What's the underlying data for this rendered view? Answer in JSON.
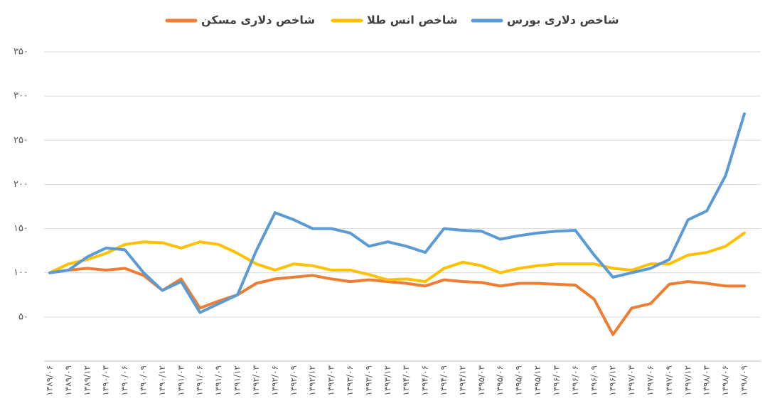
{
  "chart_data": {
    "type": "line",
    "categories": [
      "۱۳۸۹/۰۶",
      "۱۳۸۹/۰۹",
      "۱۳۸۹/۱۲",
      "۱۳۹۰/۰۳",
      "۱۳۹۰/۰۶",
      "۱۳۹۰/۰۹",
      "۱۳۹۰/۱۲",
      "۱۳۹۱/۰۳",
      "۱۳۹۱/۰۶",
      "۱۳۹۱/۰۹",
      "۱۳۹۱/۱۲",
      "۱۳۹۲/۰۳",
      "۱۳۹۲/۰۶",
      "۱۳۹۲/۰۹",
      "۱۳۹۲/۱۲",
      "۱۳۹۳/۰۳",
      "۱۳۹۳/۰۶",
      "۱۳۹۳/۰۹",
      "۱۳۹۳/۱۲",
      "۱۳۹۴/۰۳",
      "۱۳۹۴/۰۶",
      "۱۳۹۴/۰۹",
      "۱۳۹۴/۱۲",
      "۱۳۹۵/۰۳",
      "۱۳۹۵/۰۶",
      "۱۳۹۵/۰۹",
      "۱۳۹۵/۱۲",
      "۱۳۹۶/۰۳",
      "۱۳۹۶/۰۶",
      "۱۳۹۶/۰۹",
      "۱۳۹۶/۱۲",
      "۱۳۹۷/۰۳",
      "۱۳۹۷/۰۶",
      "۱۳۹۷/۰۹",
      "۱۳۹۷/۱۲",
      "۱۳۹۸/۰۳",
      "۱۳۹۸/۰۶",
      "۱۳۹۸/۰۹"
    ],
    "series": [
      {
        "name": "شاخص دلاری مسکن",
        "color": "#ed7d31",
        "values": [
          100,
          103,
          105,
          103,
          105,
          97,
          80,
          93,
          60,
          68,
          75,
          88,
          93,
          95,
          97,
          93,
          90,
          92,
          90,
          88,
          85,
          92,
          90,
          89,
          85,
          88,
          88,
          87,
          86,
          70,
          30,
          60,
          65,
          87,
          90,
          88,
          85,
          85
        ]
      },
      {
        "name": "شاخص انس طلا",
        "color": "#ffc000",
        "values": [
          100,
          110,
          115,
          122,
          132,
          135,
          134,
          128,
          135,
          132,
          122,
          110,
          103,
          110,
          108,
          103,
          103,
          98,
          92,
          93,
          90,
          105,
          112,
          108,
          100,
          105,
          108,
          110,
          110,
          110,
          105,
          103,
          110,
          110,
          120,
          123,
          130,
          145
        ]
      },
      {
        "name": "شاخص دلاری بورس",
        "color": "#5b9bd5",
        "values": [
          100,
          103,
          118,
          128,
          126,
          100,
          80,
          90,
          55,
          65,
          75,
          125,
          168,
          160,
          150,
          150,
          145,
          130,
          135,
          130,
          123,
          150,
          148,
          147,
          138,
          142,
          145,
          147,
          148,
          120,
          95,
          100,
          105,
          115,
          160,
          170,
          210,
          280
        ]
      }
    ],
    "ylim": [
      0,
      350
    ],
    "yticks": [
      {
        "value": 50,
        "label": "۵۰"
      },
      {
        "value": 100,
        "label": "۱۰۰"
      },
      {
        "value": 150,
        "label": "۱۵۰"
      },
      {
        "value": 200,
        "label": "۲۰۰"
      },
      {
        "value": 250,
        "label": "۲۵۰"
      },
      {
        "value": 300,
        "label": "۳۰۰"
      },
      {
        "value": 350,
        "label": "۳۵۰"
      }
    ],
    "grid": true
  }
}
